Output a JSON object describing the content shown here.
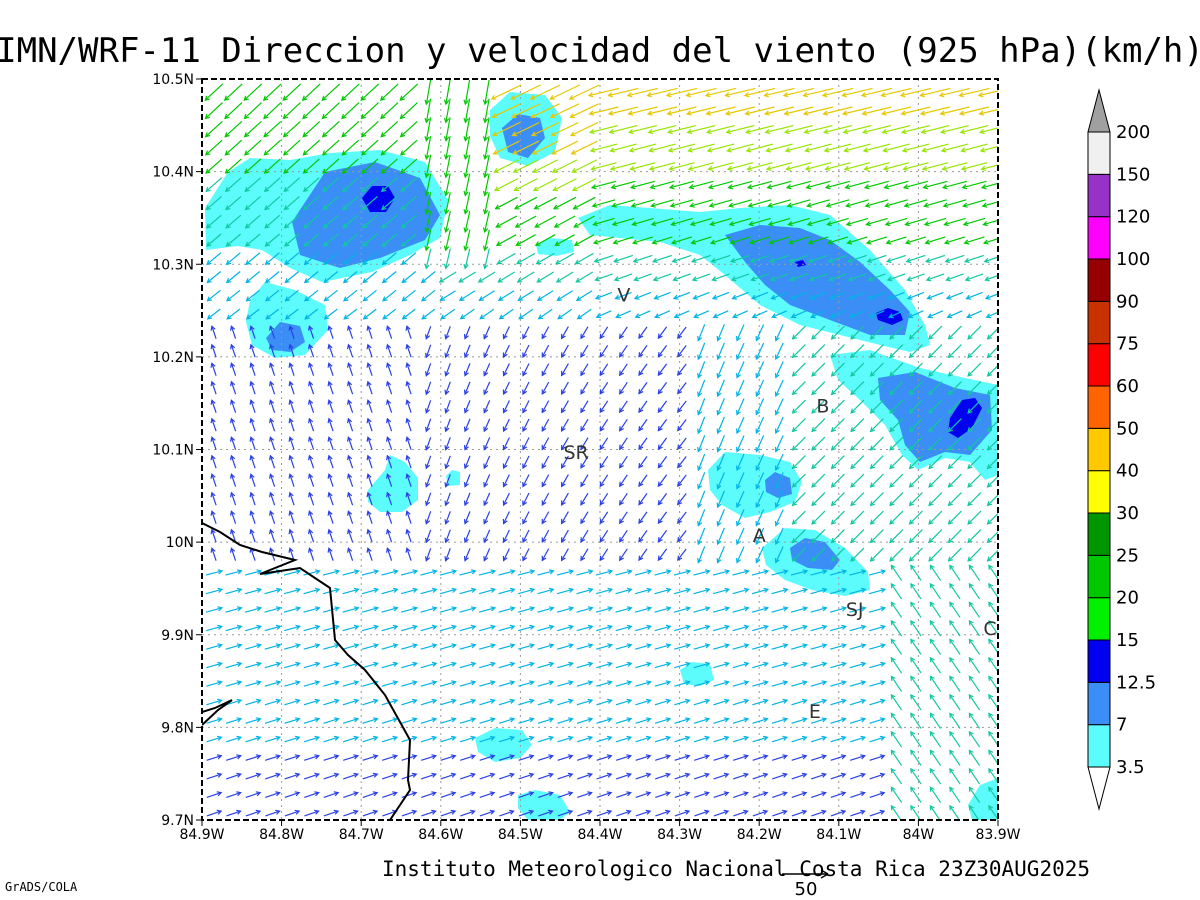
{
  "title": "IMN/WRF-11 Direccion y velocidad del viento (925 hPa)(km/h)",
  "footer": "Instituto Meteorologico Nacional Costa Rica  23Z30AUG2025",
  "credit": "GrADS/COLA",
  "reference_vector": {
    "label": "50",
    "value": 50
  },
  "map": {
    "lon_range": [
      -84.9,
      -83.9
    ],
    "lat_range": [
      9.7,
      10.5
    ],
    "x_ticks": [
      "84.9W",
      "84.8W",
      "84.7W",
      "84.6W",
      "84.5W",
      "84.4W",
      "84.3W",
      "84.2W",
      "84.1W",
      "84W",
      "83.9W"
    ],
    "y_ticks": [
      "9.7N",
      "9.8N",
      "9.9N",
      "10N",
      "10.1N",
      "10.2N",
      "10.3N",
      "10.4N",
      "10.5N"
    ],
    "grid": true,
    "places": [
      {
        "label": "V",
        "lon": -84.37,
        "lat": 10.26
      },
      {
        "label": "SR",
        "lon": -84.43,
        "lat": 10.09
      },
      {
        "label": "B",
        "lon": -84.12,
        "lat": 10.14
      },
      {
        "label": "A",
        "lon": -84.2,
        "lat": 10.0
      },
      {
        "label": "SJ",
        "lon": -84.08,
        "lat": 9.92
      },
      {
        "label": "C",
        "lon": -83.91,
        "lat": 9.9
      },
      {
        "label": "E",
        "lon": -84.13,
        "lat": 9.81
      }
    ]
  },
  "colorbar": {
    "levels": [
      "3.5",
      "7",
      "12.5",
      "15",
      "20",
      "25",
      "30",
      "40",
      "50",
      "60",
      "75",
      "90",
      "100",
      "120",
      "150",
      "200"
    ],
    "colors": [
      "#ffffff",
      "#5dfcfc",
      "#3a8ef6",
      "#0000f0",
      "#00f000",
      "#00c800",
      "#009600",
      "#ffff00",
      "#ffc800",
      "#ff6400",
      "#ff0000",
      "#c83200",
      "#960000",
      "#ff00ff",
      "#9632c8",
      "#f0f0f0",
      "#a0a0a0"
    ]
  },
  "wind_colors": {
    "weak": "#7a00c8",
    "blue": "#2a40e6",
    "cyan": "#00b4e6",
    "teal": "#10c8a0",
    "green": "#00c800",
    "lime": "#96e600",
    "yellow": "#e6c800",
    "orange": "#ff8c00",
    "red": "#ff2000"
  },
  "chart_data": {
    "type": "heatmap",
    "title": "IMN/WRF-11 Direccion y velocidad del viento (925 hPa)(km/h)",
    "x_axis": "longitude",
    "y_axis": "latitude",
    "xlim": [
      -84.9,
      -83.9
    ],
    "ylim": [
      9.7,
      10.5
    ],
    "legend": "right",
    "field": "wind speed shaded (km/h), vectors for direction",
    "shaded_regions": [
      {
        "lon": -84.68,
        "lat": 10.36,
        "level": "15"
      },
      {
        "lon": -84.5,
        "lat": 10.43,
        "level": "12.5"
      },
      {
        "lon": -84.04,
        "lat": 10.25,
        "level": "15"
      },
      {
        "lon": -83.94,
        "lat": 10.13,
        "level": "15"
      },
      {
        "lon": -84.15,
        "lat": 10.06,
        "level": "12.5"
      },
      {
        "lon": -84.12,
        "lat": 9.98,
        "level": "12.5"
      },
      {
        "lon": -84.8,
        "lat": 10.22,
        "level": "12.5"
      },
      {
        "lon": -84.65,
        "lat": 10.07,
        "level": "3.5"
      },
      {
        "lon": -84.28,
        "lat": 9.86,
        "level": "3.5"
      },
      {
        "lon": -84.52,
        "lat": 9.78,
        "level": "3.5"
      },
      {
        "lon": -84.47,
        "lat": 9.72,
        "level": "3.5"
      },
      {
        "lon": -84.46,
        "lat": 10.32,
        "level": "3.5"
      },
      {
        "lon": -83.91,
        "lat": 9.72,
        "level": "3.5"
      }
    ]
  }
}
